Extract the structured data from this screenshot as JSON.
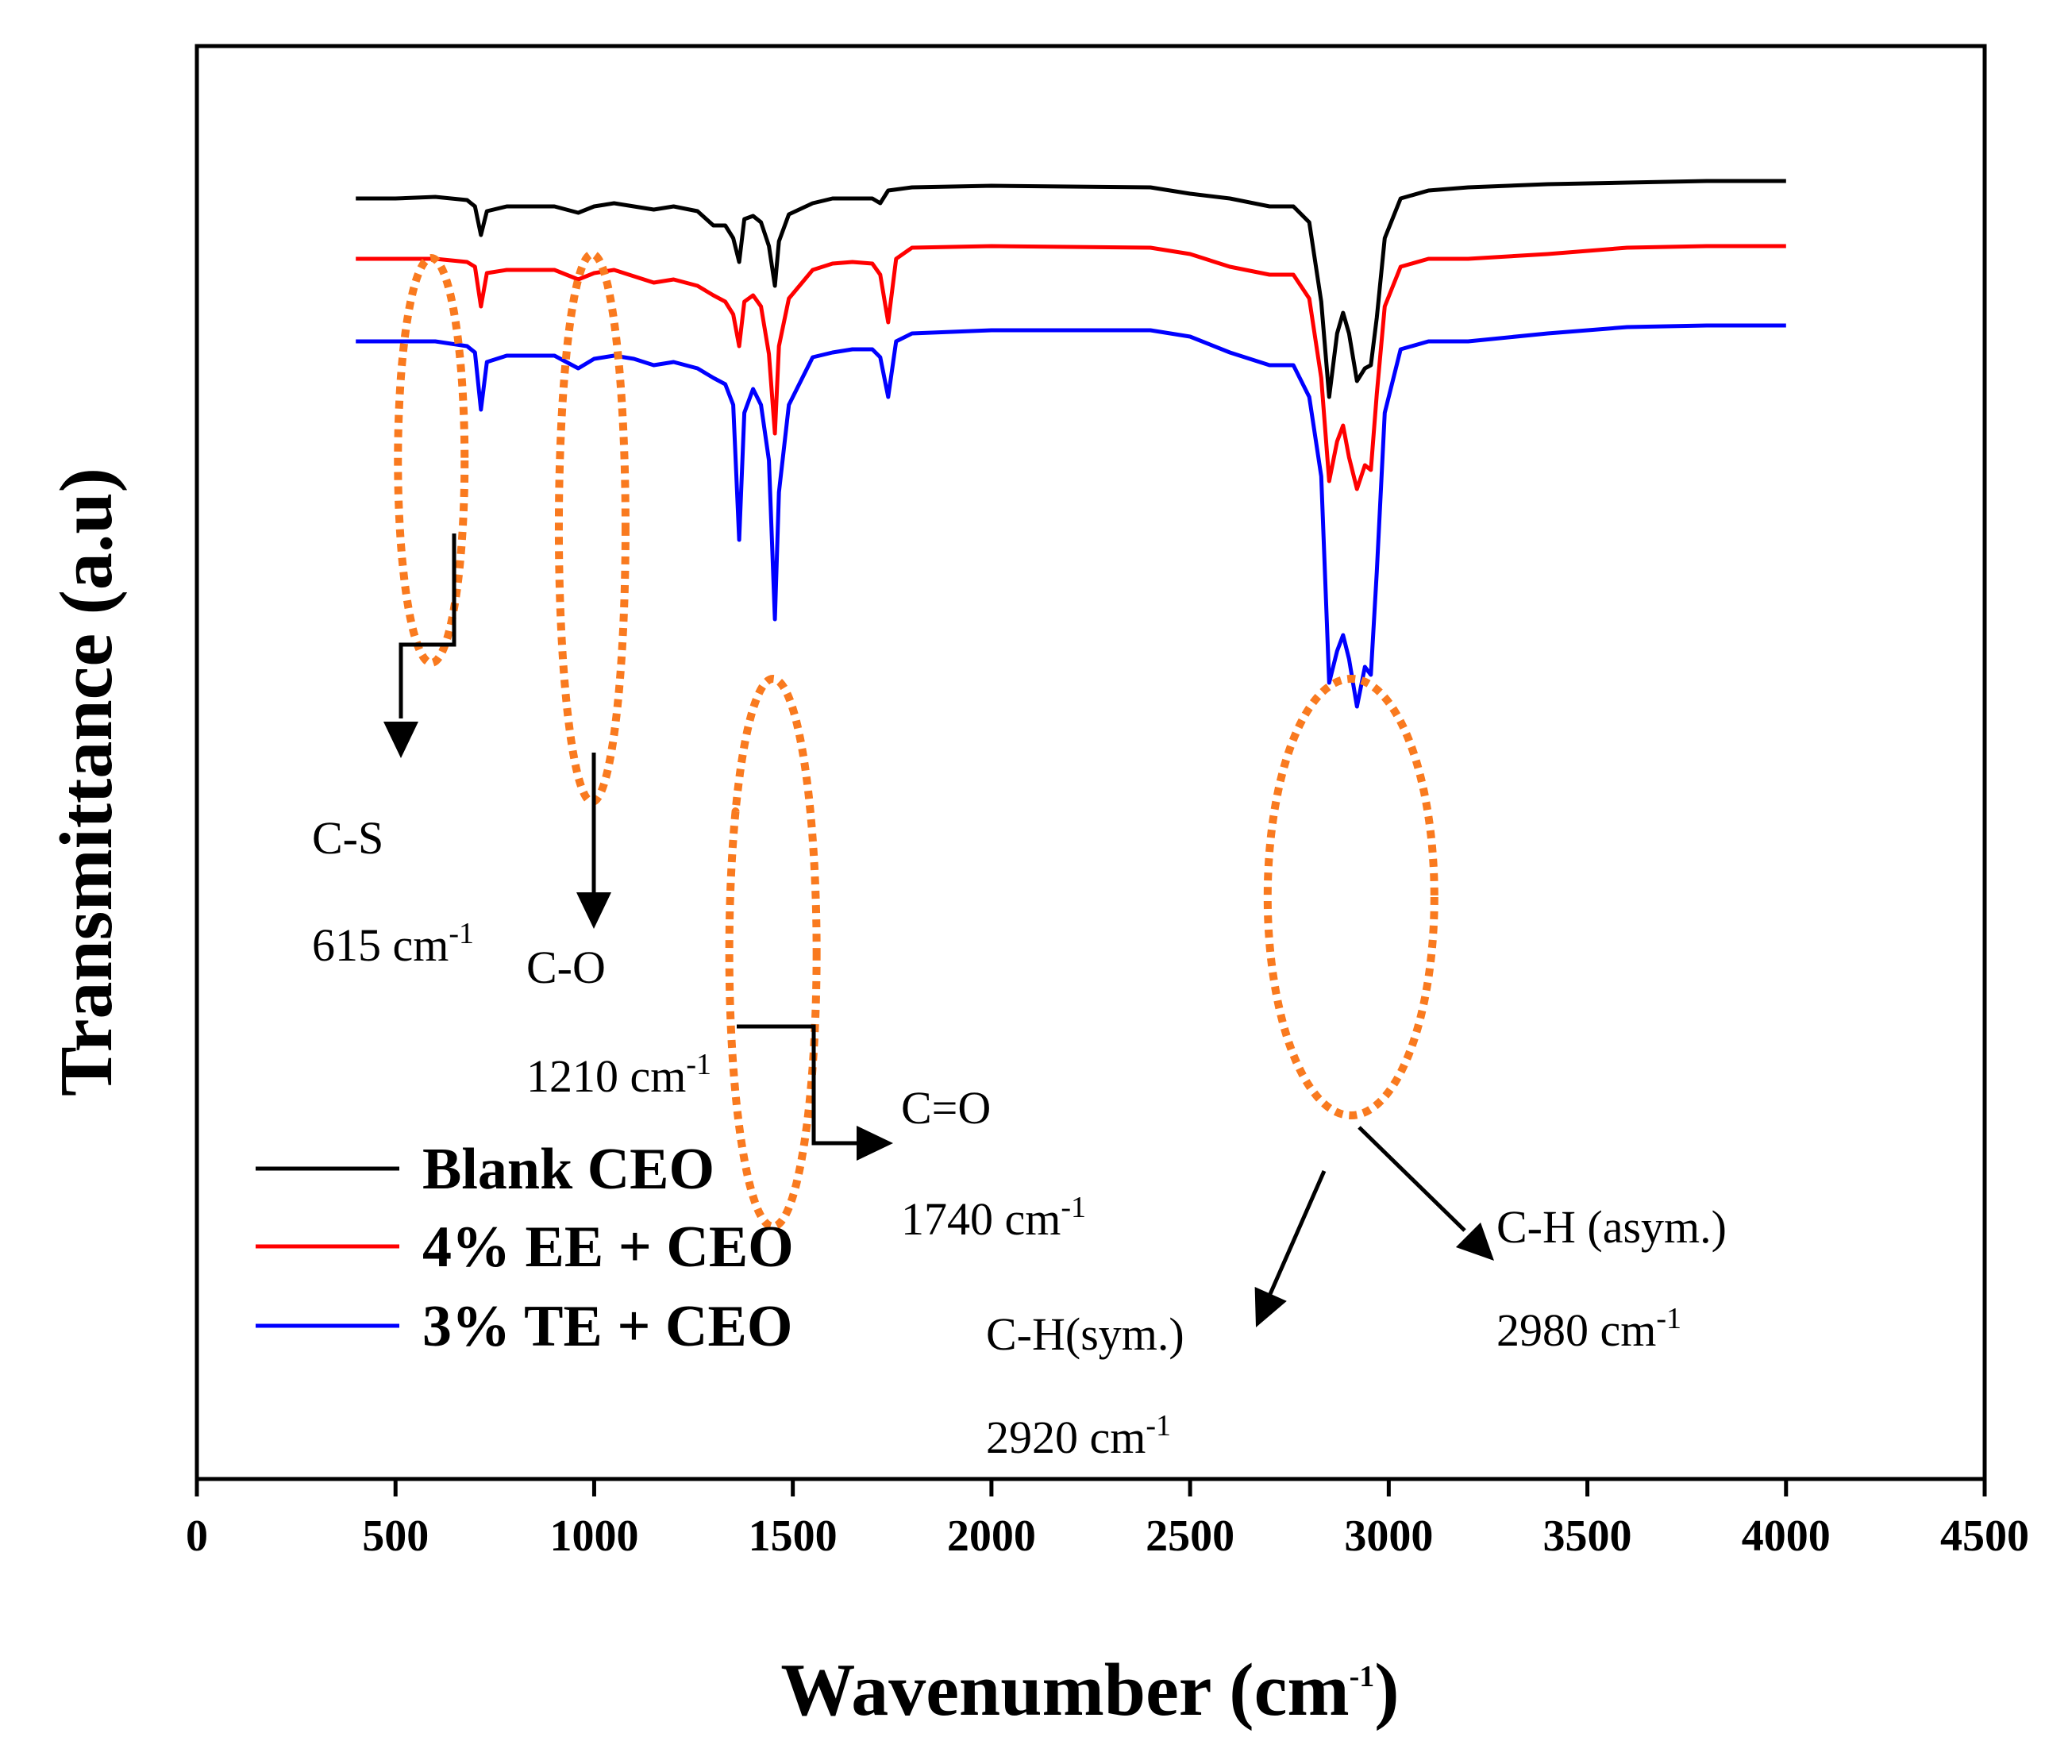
{
  "chart_data": {
    "type": "line",
    "title": "",
    "xlabel": "Wavenumber (cm",
    "xlabel_sup": "-1",
    "xlabel_close": ")",
    "ylabel": "Transmittance (a.u)",
    "xlim": [
      0,
      4500
    ],
    "xticks": [
      "0",
      "500",
      "1000",
      "1500",
      "2000",
      "2500",
      "3000",
      "3500",
      "4000",
      "4500"
    ],
    "yticks_shown": false,
    "grid": false,
    "legend_position": "bottom-left",
    "series": [
      {
        "name": "Blank CEO",
        "color": "#000000",
        "offset": 0,
        "points": [
          [
            400,
            0.05
          ],
          [
            500,
            0.05
          ],
          [
            600,
            0.04
          ],
          [
            680,
            0.06
          ],
          [
            700,
            0.1
          ],
          [
            715,
            0.28
          ],
          [
            730,
            0.13
          ],
          [
            780,
            0.1
          ],
          [
            900,
            0.1
          ],
          [
            960,
            0.14
          ],
          [
            1000,
            0.1
          ],
          [
            1050,
            0.08
          ],
          [
            1100,
            0.1
          ],
          [
            1150,
            0.12
          ],
          [
            1200,
            0.1
          ],
          [
            1260,
            0.13
          ],
          [
            1300,
            0.22
          ],
          [
            1330,
            0.22
          ],
          [
            1350,
            0.3
          ],
          [
            1365,
            0.45
          ],
          [
            1378,
            0.18
          ],
          [
            1400,
            0.16
          ],
          [
            1420,
            0.2
          ],
          [
            1440,
            0.35
          ],
          [
            1455,
            0.6
          ],
          [
            1465,
            0.32
          ],
          [
            1490,
            0.15
          ],
          [
            1550,
            0.08
          ],
          [
            1600,
            0.05
          ],
          [
            1650,
            0.05
          ],
          [
            1700,
            0.05
          ],
          [
            1720,
            0.08
          ],
          [
            1740,
            0.0
          ],
          [
            1800,
            -0.02
          ],
          [
            2000,
            -0.03
          ],
          [
            2400,
            -0.02
          ],
          [
            2500,
            0.02
          ],
          [
            2600,
            0.05
          ],
          [
            2700,
            0.1
          ],
          [
            2760,
            0.1
          ],
          [
            2800,
            0.2
          ],
          [
            2830,
            0.7
          ],
          [
            2850,
            1.3
          ],
          [
            2870,
            0.9
          ],
          [
            2885,
            0.77
          ],
          [
            2900,
            0.9
          ],
          [
            2920,
            1.2
          ],
          [
            2940,
            1.12
          ],
          [
            2955,
            1.1
          ],
          [
            2970,
            0.8
          ],
          [
            2990,
            0.3
          ],
          [
            3030,
            0.05
          ],
          [
            3100,
            0.0
          ],
          [
            3200,
            -0.02
          ],
          [
            3400,
            -0.04
          ],
          [
            3600,
            -0.05
          ],
          [
            3800,
            -0.06
          ],
          [
            4000,
            -0.06
          ]
        ]
      },
      {
        "name": "4% EE + CEO",
        "color": "#ff0000",
        "offset": 0.38,
        "points": [
          [
            400,
            0.05
          ],
          [
            500,
            0.05
          ],
          [
            600,
            0.05
          ],
          [
            680,
            0.07
          ],
          [
            700,
            0.1
          ],
          [
            715,
            0.35
          ],
          [
            730,
            0.14
          ],
          [
            780,
            0.12
          ],
          [
            900,
            0.12
          ],
          [
            960,
            0.18
          ],
          [
            1000,
            0.14
          ],
          [
            1050,
            0.12
          ],
          [
            1100,
            0.16
          ],
          [
            1150,
            0.2
          ],
          [
            1200,
            0.18
          ],
          [
            1260,
            0.22
          ],
          [
            1300,
            0.28
          ],
          [
            1330,
            0.32
          ],
          [
            1350,
            0.4
          ],
          [
            1365,
            0.6
          ],
          [
            1378,
            0.32
          ],
          [
            1400,
            0.28
          ],
          [
            1420,
            0.35
          ],
          [
            1440,
            0.65
          ],
          [
            1455,
            1.15
          ],
          [
            1465,
            0.6
          ],
          [
            1490,
            0.3
          ],
          [
            1550,
            0.12
          ],
          [
            1600,
            0.08
          ],
          [
            1650,
            0.07
          ],
          [
            1700,
            0.08
          ],
          [
            1720,
            0.15
          ],
          [
            1740,
            0.45
          ],
          [
            1760,
            0.05
          ],
          [
            1800,
            -0.02
          ],
          [
            2000,
            -0.03
          ],
          [
            2400,
            -0.02
          ],
          [
            2500,
            0.02
          ],
          [
            2600,
            0.1
          ],
          [
            2700,
            0.15
          ],
          [
            2760,
            0.15
          ],
          [
            2800,
            0.3
          ],
          [
            2830,
            0.8
          ],
          [
            2850,
            1.45
          ],
          [
            2870,
            1.2
          ],
          [
            2885,
            1.1
          ],
          [
            2900,
            1.3
          ],
          [
            2920,
            1.5
          ],
          [
            2940,
            1.35
          ],
          [
            2955,
            1.38
          ],
          [
            2970,
            0.9
          ],
          [
            2990,
            0.35
          ],
          [
            3030,
            0.1
          ],
          [
            3100,
            0.05
          ],
          [
            3200,
            0.05
          ],
          [
            3400,
            0.02
          ],
          [
            3600,
            -0.02
          ],
          [
            3800,
            -0.03
          ],
          [
            4000,
            -0.03
          ]
        ]
      },
      {
        "name": "3% TE + CEO",
        "color": "#0000ff",
        "offset": 0.9,
        "points": [
          [
            400,
            0.05
          ],
          [
            500,
            0.05
          ],
          [
            600,
            0.05
          ],
          [
            680,
            0.08
          ],
          [
            700,
            0.12
          ],
          [
            715,
            0.48
          ],
          [
            730,
            0.18
          ],
          [
            780,
            0.14
          ],
          [
            900,
            0.14
          ],
          [
            960,
            0.22
          ],
          [
            1000,
            0.16
          ],
          [
            1050,
            0.14
          ],
          [
            1100,
            0.16
          ],
          [
            1150,
            0.2
          ],
          [
            1200,
            0.18
          ],
          [
            1260,
            0.22
          ],
          [
            1300,
            0.28
          ],
          [
            1330,
            0.32
          ],
          [
            1350,
            0.45
          ],
          [
            1365,
            1.3
          ],
          [
            1378,
            0.5
          ],
          [
            1400,
            0.35
          ],
          [
            1420,
            0.45
          ],
          [
            1440,
            0.8
          ],
          [
            1455,
            1.8
          ],
          [
            1465,
            1.0
          ],
          [
            1490,
            0.45
          ],
          [
            1550,
            0.15
          ],
          [
            1600,
            0.12
          ],
          [
            1650,
            0.1
          ],
          [
            1700,
            0.1
          ],
          [
            1720,
            0.15
          ],
          [
            1740,
            0.4
          ],
          [
            1760,
            0.05
          ],
          [
            1800,
            0.0
          ],
          [
            2000,
            -0.02
          ],
          [
            2400,
            -0.02
          ],
          [
            2500,
            0.02
          ],
          [
            2600,
            0.12
          ],
          [
            2700,
            0.2
          ],
          [
            2760,
            0.2
          ],
          [
            2800,
            0.4
          ],
          [
            2830,
            0.9
          ],
          [
            2850,
            2.2
          ],
          [
            2870,
            2.0
          ],
          [
            2885,
            1.9
          ],
          [
            2900,
            2.05
          ],
          [
            2920,
            2.35
          ],
          [
            2940,
            2.1
          ],
          [
            2955,
            2.15
          ],
          [
            2970,
            1.5
          ],
          [
            2990,
            0.5
          ],
          [
            3030,
            0.1
          ],
          [
            3100,
            0.05
          ],
          [
            3200,
            0.05
          ],
          [
            3400,
            0.0
          ],
          [
            3600,
            -0.04
          ],
          [
            3800,
            -0.05
          ],
          [
            4000,
            -0.05
          ]
        ]
      }
    ],
    "annotations": [
      {
        "group": "C-S",
        "label": "C-S",
        "wavenumber": "615 cm",
        "sup": "-1"
      },
      {
        "group": "C-O",
        "label": "C-O",
        "wavenumber": "1210 cm",
        "sup": "-1"
      },
      {
        "group": "C=O",
        "label": "C=O",
        "wavenumber": "1740 cm",
        "sup": "-1"
      },
      {
        "group": "CH-sym",
        "label": "C-H(sym.)",
        "wavenumber": "2920 cm",
        "sup": "-1"
      },
      {
        "group": "CH-asym",
        "label": "C-H (asym.)",
        "wavenumber": "2980 cm",
        "sup": "-1"
      }
    ],
    "highlight_color": "#f97a1f"
  }
}
